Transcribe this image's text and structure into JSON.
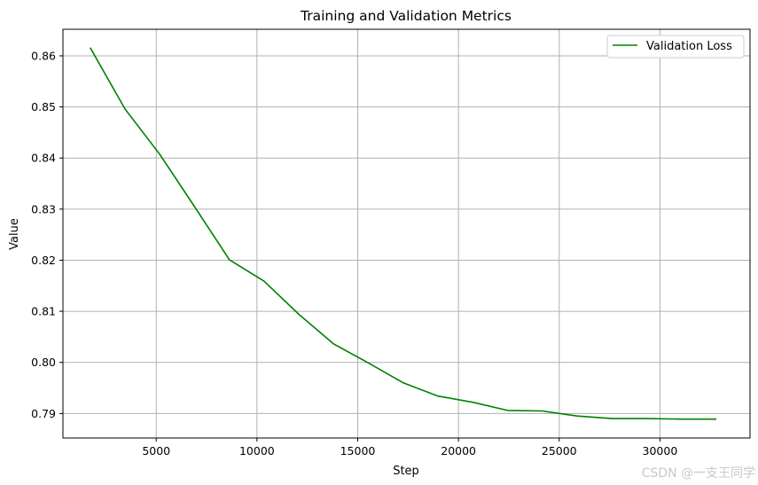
{
  "chart_data": {
    "type": "line",
    "title": "Training and Validation Metrics",
    "xlabel": "Step",
    "ylabel": "Value",
    "xlim": [
      370,
      34470
    ],
    "ylim": [
      0.7852,
      0.8652
    ],
    "xticks": [
      5000,
      10000,
      15000,
      20000,
      25000,
      30000
    ],
    "yticks": [
      0.79,
      0.8,
      0.81,
      0.82,
      0.83,
      0.84,
      0.85,
      0.86
    ],
    "ytick_labels": [
      "0.79",
      "0.80",
      "0.81",
      "0.82",
      "0.83",
      "0.84",
      "0.85",
      "0.86"
    ],
    "grid": true,
    "legend_position": "top-right",
    "series": [
      {
        "name": "Validation Loss",
        "color": "#008000",
        "x": [
          1720,
          3450,
          5180,
          6900,
          8630,
          10350,
          12080,
          13810,
          15530,
          17260,
          18980,
          20710,
          22440,
          24160,
          25890,
          27620,
          29340,
          31070,
          32800
        ],
        "y": [
          0.8616,
          0.8496,
          0.8407,
          0.8305,
          0.8201,
          0.8159,
          0.8094,
          0.8036,
          0.7999,
          0.796,
          0.7934,
          0.7922,
          0.7906,
          0.7905,
          0.7895,
          0.789,
          0.789,
          0.7889,
          0.7889
        ]
      }
    ]
  },
  "watermark": "CSDN @一支王同学"
}
